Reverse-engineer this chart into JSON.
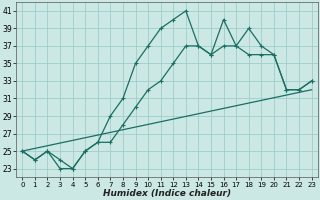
{
  "title": "",
  "xlabel": "Humidex (Indice chaleur)",
  "ylabel": "",
  "background_color": "#cce8e4",
  "grid_color": "#9ececa",
  "line_color": "#1a6e62",
  "xlim": [
    -0.5,
    23.5
  ],
  "ylim": [
    22.0,
    42.0
  ],
  "xticks": [
    0,
    1,
    2,
    3,
    4,
    5,
    6,
    7,
    8,
    9,
    10,
    11,
    12,
    13,
    14,
    15,
    16,
    17,
    18,
    19,
    20,
    21,
    22,
    23
  ],
  "yticks": [
    23,
    25,
    27,
    29,
    31,
    33,
    35,
    37,
    39,
    41
  ],
  "line1_x": [
    0,
    1,
    2,
    3,
    4,
    5,
    6,
    7,
    8,
    9,
    10,
    11,
    12,
    13,
    14,
    15,
    16,
    17,
    18,
    19,
    20,
    21,
    22,
    23
  ],
  "line1_y": [
    25,
    24,
    25,
    23,
    23,
    25,
    26,
    29,
    31,
    35,
    37,
    39,
    40,
    41,
    37,
    36,
    40,
    37,
    39,
    37,
    36,
    32,
    32,
    33
  ],
  "line2_x": [
    0,
    1,
    2,
    3,
    4,
    5,
    6,
    7,
    8,
    9,
    10,
    11,
    12,
    13,
    14,
    15,
    16,
    17,
    18,
    19,
    20,
    21,
    22,
    23
  ],
  "line2_y": [
    25,
    24,
    25,
    24,
    23,
    25,
    26,
    26,
    28,
    30,
    32,
    33,
    35,
    37,
    37,
    36,
    37,
    37,
    36,
    36,
    36,
    32,
    32,
    33
  ],
  "line3_x": [
    0,
    23
  ],
  "line3_y": [
    25,
    32
  ]
}
